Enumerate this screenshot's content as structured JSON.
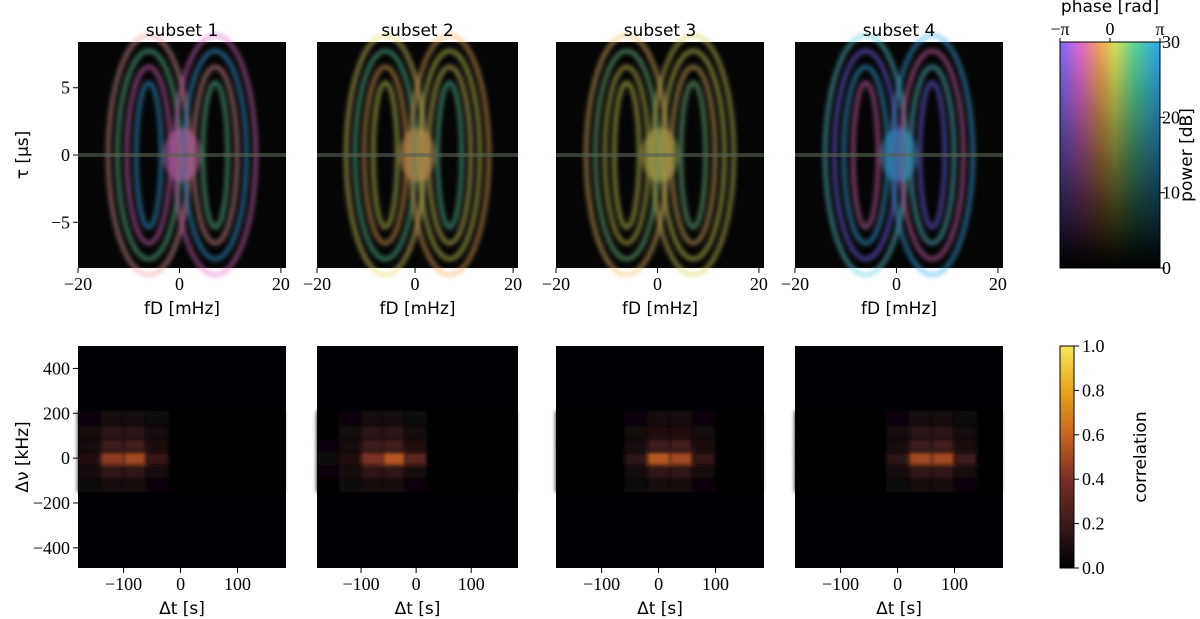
{
  "chart_data": [
    {
      "type": "image",
      "title": "subset 1",
      "xlabel": "fD [mHz]",
      "ylabel": "τ [μs]",
      "xlim": [
        -20,
        21
      ],
      "ylim": [
        -8.4,
        8.4
      ],
      "xticks": [
        {
          "value": -20,
          "label": "−20"
        },
        0,
        20
      ],
      "yticks": [
        {
          "value": -5,
          "label": "−5"
        },
        0,
        5
      ]
    },
    {
      "type": "image",
      "title": "subset 2",
      "xlabel": "fD [mHz]",
      "xlim": [
        -20,
        21
      ],
      "ylim": [
        -8.4,
        8.4
      ],
      "xticks": [
        {
          "value": -20,
          "label": "−20"
        },
        0,
        20
      ]
    },
    {
      "type": "image",
      "title": "subset 3",
      "xlabel": "fD [mHz]",
      "xlim": [
        -20,
        21
      ],
      "ylim": [
        -8.4,
        8.4
      ],
      "xticks": [
        {
          "value": -20,
          "label": "−20"
        },
        0,
        20
      ]
    },
    {
      "type": "image",
      "title": "subset 4",
      "xlabel": "fD [mHz]",
      "xlim": [
        -20,
        21
      ],
      "ylim": [
        -8.4,
        8.4
      ],
      "xticks": [
        {
          "value": -20,
          "label": "−20"
        },
        0,
        20
      ]
    },
    {
      "type": "heatmap",
      "xlabel": "Δt [s]",
      "ylabel": "Δν [kHz]",
      "xlim": [
        -180,
        185
      ],
      "ylim": [
        -490,
        500
      ],
      "xticks": [
        {
          "value": -100,
          "label": "−100"
        },
        0,
        100
      ],
      "yticks": [
        {
          "value": -400,
          "label": "−400"
        },
        {
          "value": -200,
          "label": "−200"
        },
        0,
        200,
        400
      ],
      "x_edges": [
        -180,
        -140,
        -100,
        -60,
        -20,
        20,
        60,
        100,
        140,
        180
      ],
      "y_edges": [
        -150,
        -90,
        -30,
        30,
        90,
        150,
        210
      ],
      "z": [
        [
          0.05,
          0.08,
          0.08,
          0.04,
          0,
          0,
          0,
          0,
          0
        ],
        [
          0.08,
          0.16,
          0.16,
          0.08,
          0.02,
          0,
          0,
          0,
          0
        ],
        [
          0.12,
          0.45,
          0.5,
          0.18,
          0.02,
          0,
          0,
          0,
          0
        ],
        [
          0.08,
          0.2,
          0.22,
          0.1,
          0.02,
          0,
          0,
          0,
          0
        ],
        [
          0.06,
          0.14,
          0.14,
          0.08,
          0.02,
          0,
          0,
          0,
          0
        ],
        [
          0.04,
          0.08,
          0.08,
          0.05,
          0,
          0,
          0,
          0,
          0
        ]
      ]
    },
    {
      "type": "heatmap",
      "xlabel": "Δt [s]",
      "xlim": [
        -180,
        185
      ],
      "ylim": [
        -490,
        500
      ],
      "xticks": [
        {
          "value": -100,
          "label": "−100"
        },
        0,
        100
      ],
      "x_edges": [
        -180,
        -140,
        -100,
        -60,
        -20,
        20,
        60,
        100,
        140,
        180
      ],
      "y_edges": [
        -150,
        -90,
        -30,
        30,
        90,
        150,
        210
      ],
      "z": [
        [
          0.02,
          0.05,
          0.08,
          0.08,
          0.04,
          0,
          0,
          0,
          0
        ],
        [
          0.04,
          0.08,
          0.16,
          0.16,
          0.08,
          0.02,
          0,
          0,
          0
        ],
        [
          0.05,
          0.12,
          0.4,
          0.55,
          0.3,
          0.02,
          0,
          0,
          0
        ],
        [
          0.04,
          0.08,
          0.2,
          0.22,
          0.12,
          0.02,
          0,
          0,
          0
        ],
        [
          0.02,
          0.06,
          0.14,
          0.14,
          0.08,
          0.02,
          0,
          0,
          0
        ],
        [
          0,
          0.04,
          0.08,
          0.08,
          0.05,
          0,
          0,
          0,
          0
        ]
      ]
    },
    {
      "type": "heatmap",
      "xlabel": "Δt [s]",
      "xlim": [
        -180,
        185
      ],
      "ylim": [
        -490,
        500
      ],
      "xticks": [
        {
          "value": -100,
          "label": "−100"
        },
        0,
        100
      ],
      "x_edges": [
        -180,
        -140,
        -100,
        -60,
        -20,
        20,
        60,
        100,
        140,
        180
      ],
      "y_edges": [
        -150,
        -90,
        -30,
        30,
        90,
        150,
        210
      ],
      "z": [
        [
          0,
          0,
          0,
          0.05,
          0.08,
          0.08,
          0.04,
          0,
          0
        ],
        [
          0,
          0,
          0.02,
          0.08,
          0.16,
          0.16,
          0.08,
          0,
          0
        ],
        [
          0,
          0,
          0.02,
          0.15,
          0.55,
          0.5,
          0.18,
          0.02,
          0
        ],
        [
          0,
          0,
          0.02,
          0.08,
          0.2,
          0.22,
          0.1,
          0,
          0
        ],
        [
          0,
          0,
          0,
          0.06,
          0.12,
          0.12,
          0.06,
          0,
          0
        ],
        [
          0,
          0,
          0,
          0.04,
          0.06,
          0.06,
          0.04,
          0,
          0
        ]
      ]
    },
    {
      "type": "heatmap",
      "xlabel": "Δt [s]",
      "xlim": [
        -180,
        185
      ],
      "ylim": [
        -490,
        500
      ],
      "xticks": [
        {
          "value": -100,
          "label": "−100"
        },
        0,
        100
      ],
      "x_edges": [
        -180,
        -140,
        -100,
        -60,
        -20,
        20,
        60,
        100,
        140,
        180
      ],
      "y_edges": [
        -150,
        -90,
        -30,
        30,
        90,
        150,
        210
      ],
      "z": [
        [
          0,
          0,
          0,
          0,
          0.05,
          0.08,
          0.08,
          0.04,
          0
        ],
        [
          0,
          0,
          0,
          0.02,
          0.08,
          0.16,
          0.16,
          0.08,
          0.02
        ],
        [
          0,
          0,
          0,
          0.02,
          0.15,
          0.5,
          0.5,
          0.2,
          0.02
        ],
        [
          0,
          0,
          0,
          0.02,
          0.08,
          0.2,
          0.22,
          0.1,
          0.02
        ],
        [
          0,
          0,
          0,
          0,
          0.06,
          0.14,
          0.14,
          0.08,
          0.02
        ],
        [
          0,
          0,
          0,
          0,
          0.04,
          0.08,
          0.08,
          0.05,
          0
        ]
      ]
    },
    {
      "type": "colorbar",
      "xlabel": "phase [rad]",
      "ylabel": "power [dB]",
      "xlim": [
        -3.14159,
        3.14159
      ],
      "xticks": [
        {
          "value": -3.14159,
          "label": "−π"
        },
        0,
        {
          "value": 3.14159,
          "label": "π"
        }
      ],
      "ylim": [
        0,
        30
      ],
      "yticks": [
        0,
        10,
        20,
        30
      ]
    },
    {
      "type": "colorbar",
      "ylabel": "correlation",
      "ylim": [
        0,
        1
      ],
      "yticks": [
        {
          "value": 0,
          "label": "0.0"
        },
        0.2,
        0.4,
        0.6,
        0.8,
        {
          "value": 1,
          "label": "1.0"
        }
      ]
    }
  ]
}
